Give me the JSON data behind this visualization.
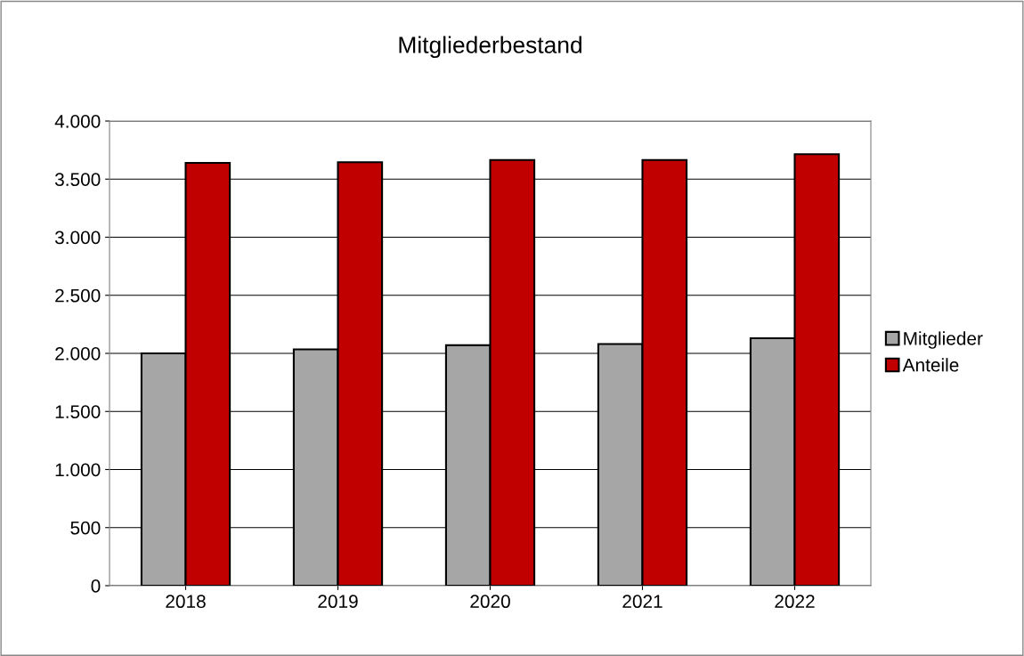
{
  "chart_data": {
    "type": "bar",
    "title": "Mitgliederbestand",
    "categories": [
      "2018",
      "2019",
      "2020",
      "2021",
      "2022"
    ],
    "series": [
      {
        "name": "Mitglieder",
        "color": "#a6a6a6",
        "values": [
          2000,
          2035,
          2070,
          2080,
          2130
        ]
      },
      {
        "name": "Anteile",
        "color": "#c00000",
        "values": [
          3640,
          3645,
          3665,
          3665,
          3715
        ]
      }
    ],
    "ylim": [
      0,
      4000
    ],
    "yticks": [
      {
        "value": 0,
        "label": "0"
      },
      {
        "value": 500,
        "label": "500"
      },
      {
        "value": 1000,
        "label": "1.000"
      },
      {
        "value": 1500,
        "label": "1.500"
      },
      {
        "value": 2000,
        "label": "2.000"
      },
      {
        "value": 2500,
        "label": "2.500"
      },
      {
        "value": 3000,
        "label": "3.000"
      },
      {
        "value": 3500,
        "label": "3.500"
      },
      {
        "value": 4000,
        "label": "4.000"
      }
    ],
    "grid": "y",
    "legend": "right"
  }
}
